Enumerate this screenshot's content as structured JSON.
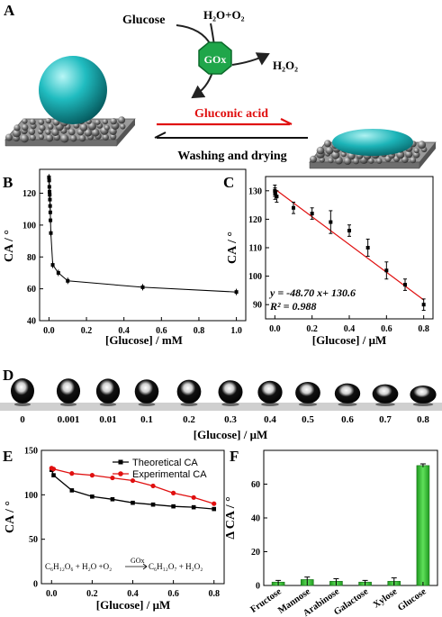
{
  "panels": {
    "A": {
      "letter": "A",
      "glucose": "Glucose",
      "h2o_o2": "H₂O+O₂",
      "enzyme": "GOx",
      "h2o2": "H₂O₂",
      "gluconic_acid": "Gluconic acid",
      "washing": "Washing and drying",
      "colors": {
        "sphere": "#19b4b8",
        "arrow_red": "#e01010",
        "gluconic_text": "#e01010",
        "gox_fill": "#1fa64a",
        "substrate": "#8c8c8c"
      }
    },
    "B": {
      "letter": "B",
      "ylabel": "CA / °",
      "xlabel": "[Glucose] / mM",
      "xticks": [
        "0.0",
        "0.2",
        "0.4",
        "0.6",
        "0.8",
        "1.0"
      ],
      "yticks": [
        "40",
        "60",
        "80",
        "100",
        "120"
      ]
    },
    "C": {
      "letter": "C",
      "ylabel": "CA / °",
      "xlabel": "[Glucose] / μM",
      "xticks": [
        "0.0",
        "0.2",
        "0.4",
        "0.6",
        "0.8"
      ],
      "yticks": [
        "90",
        "100",
        "110",
        "120",
        "130"
      ],
      "eq_line1": "y = -48.70 x+ 130.6",
      "eq_line2": "R² = 0.988",
      "line_color": "#e01010"
    },
    "D": {
      "letter": "D",
      "xlabel": "[Glucose] / μM",
      "labels": [
        "0",
        "0.001",
        "0.01",
        "0.1",
        "0.2",
        "0.3",
        "0.4",
        "0.5",
        "0.6",
        "0.7",
        "0.8"
      ]
    },
    "E": {
      "letter": "E",
      "ylabel": "CA / °",
      "xlabel": "[Glucose] / μM",
      "xticks": [
        "0.0",
        "0.2",
        "0.4",
        "0.6",
        "0.8"
      ],
      "yticks": [
        "0",
        "50",
        "100",
        "150"
      ],
      "reaction_left": "C₆H₁₂O₆ + H₂O +O₂",
      "reaction_enzyme": "GOx",
      "reaction_right": "C₆H₁₂O₇ + H₂O₂"
    },
    "F": {
      "letter": "F",
      "ylabel": "Δ CA / °",
      "yticks": [
        "0",
        "20",
        "40",
        "60"
      ],
      "bar_color": "#39c83a"
    }
  },
  "chart_data": [
    {
      "panel": "B",
      "type": "scatter",
      "xlabel": "[Glucose] / mM",
      "ylabel": "CA / °",
      "xlim": [
        -0.05,
        1.05
      ],
      "ylim": [
        40,
        135
      ],
      "x": [
        0,
        0.001,
        0.002,
        0.003,
        0.004,
        0.005,
        0.006,
        0.007,
        0.008,
        0.01,
        0.02,
        0.05,
        0.1,
        0.5,
        1.0
      ],
      "y": [
        130,
        128,
        124,
        121,
        119,
        116,
        112,
        108,
        103,
        95,
        75,
        70,
        65,
        61,
        58
      ],
      "fit_line": true
    },
    {
      "panel": "C",
      "type": "scatter",
      "xlabel": "[Glucose] / μM",
      "ylabel": "CA / °",
      "xlim": [
        -0.05,
        0.85
      ],
      "ylim": [
        85,
        135
      ],
      "x": [
        0,
        0.001,
        0.01,
        0.1,
        0.2,
        0.3,
        0.4,
        0.5,
        0.6,
        0.7,
        0.8
      ],
      "y": [
        130,
        129,
        128,
        124,
        122,
        119,
        116,
        110,
        102,
        97,
        90
      ],
      "error": [
        2,
        2,
        2,
        2,
        2,
        4,
        2,
        3,
        3,
        2,
        2
      ],
      "fit": {
        "slope": -48.7,
        "intercept": 130.6,
        "x_range": [
          0,
          0.8
        ]
      }
    },
    {
      "panel": "E",
      "type": "line",
      "xlabel": "[Glucose] / μM",
      "ylabel": "CA / °",
      "xlim": [
        -0.05,
        0.85
      ],
      "ylim": [
        0,
        150
      ],
      "series": [
        {
          "name": "Theoretical CA",
          "color": "#000000",
          "marker": "square",
          "x": [
            0,
            0.01,
            0.1,
            0.2,
            0.3,
            0.4,
            0.5,
            0.6,
            0.7,
            0.8
          ],
          "values": [
            128,
            122,
            105,
            98,
            95,
            91,
            89,
            87,
            86,
            84
          ]
        },
        {
          "name": "Experimental CA",
          "color": "#e01010",
          "marker": "circle",
          "x": [
            0,
            0.01,
            0.1,
            0.2,
            0.3,
            0.4,
            0.5,
            0.6,
            0.7,
            0.8
          ],
          "values": [
            130,
            129,
            124,
            122,
            119,
            116,
            110,
            102,
            97,
            90
          ]
        }
      ],
      "legend": "top-right"
    },
    {
      "panel": "F",
      "type": "bar",
      "ylabel": "Δ CA / °",
      "ylim": [
        0,
        80
      ],
      "categories": [
        "Fructose",
        "Mannose",
        "Arabinose",
        "Galactose",
        "Xylose",
        "Glucose"
      ],
      "values": [
        2,
        3.5,
        2.5,
        2,
        2.5,
        71
      ],
      "error": [
        1,
        1.5,
        1.5,
        1,
        2,
        1
      ]
    }
  ]
}
